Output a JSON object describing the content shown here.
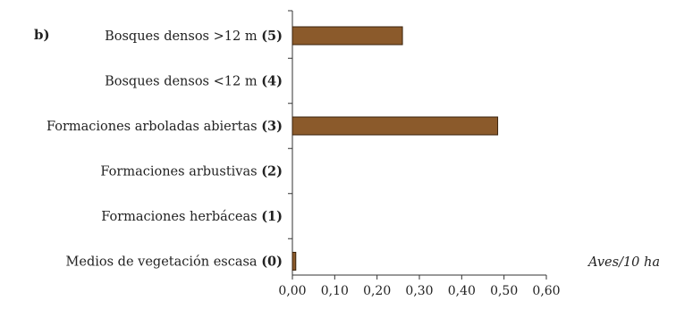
{
  "chart_data": {
    "type": "bar",
    "orientation": "horizontal",
    "panel_label": "b)",
    "unit_label": "Aves/10 ha",
    "categories": [
      {
        "name": "Bosques densos >12 m",
        "code": "(5)"
      },
      {
        "name": "Bosques densos <12 m",
        "code": "(4)"
      },
      {
        "name": "Formaciones arboladas abiertas",
        "code": "(3)"
      },
      {
        "name": "Formaciones arbustivas",
        "code": "(2)"
      },
      {
        "name": "Formaciones herbáceas",
        "code": "(1)"
      },
      {
        "name": "Medios de vegetación escasa",
        "code": "(0)"
      }
    ],
    "values": [
      0.26,
      0,
      0.485,
      0,
      0,
      0.008
    ],
    "xlim": [
      0,
      0.6
    ],
    "xticks": [
      "0,00",
      "0,10",
      "0,20",
      "0,30",
      "0,40",
      "0,50",
      "0,60"
    ],
    "bar_color": "#8b5a2b",
    "grid": false
  }
}
